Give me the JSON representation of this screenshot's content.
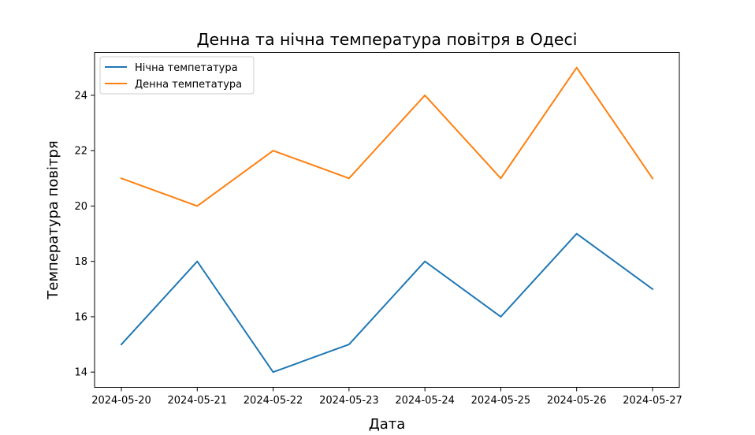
{
  "chart_data": {
    "type": "line",
    "title": "Денна та нічна температура повітря в Одесі",
    "xlabel": "Дата",
    "ylabel": "Температура повітря",
    "x": [
      "2024-05-20",
      "2024-05-21",
      "2024-05-22",
      "2024-05-23",
      "2024-05-24",
      "2024-05-25",
      "2024-05-26",
      "2024-05-27"
    ],
    "ylim": [
      13.45,
      25.55
    ],
    "yticks": [
      14,
      16,
      18,
      20,
      22,
      24
    ],
    "grid": false,
    "legend_position": "top-left",
    "series": [
      {
        "name": "Нічна темпетатура",
        "color": "#1f77b4",
        "values": [
          15,
          18,
          14,
          15,
          18,
          16,
          19,
          17
        ]
      },
      {
        "name": "Денна темпетатура",
        "color": "#ff7f0e",
        "values": [
          21,
          20,
          22,
          21,
          24,
          21,
          25,
          21
        ]
      }
    ]
  }
}
